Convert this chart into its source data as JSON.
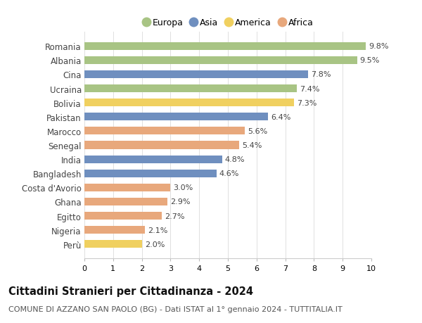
{
  "categories": [
    "Romania",
    "Albania",
    "Cina",
    "Ucraina",
    "Bolivia",
    "Pakistan",
    "Marocco",
    "Senegal",
    "India",
    "Bangladesh",
    "Costa d'Avorio",
    "Ghana",
    "Egitto",
    "Nigeria",
    "Perù"
  ],
  "values": [
    9.8,
    9.5,
    7.8,
    7.4,
    7.3,
    6.4,
    5.6,
    5.4,
    4.8,
    4.6,
    3.0,
    2.9,
    2.7,
    2.1,
    2.0
  ],
  "continents": [
    "Europa",
    "Europa",
    "Asia",
    "Europa",
    "America",
    "Asia",
    "Africa",
    "Africa",
    "Asia",
    "Asia",
    "Africa",
    "Africa",
    "Africa",
    "Africa",
    "America"
  ],
  "continent_colors": {
    "Europa": "#a8c484",
    "Asia": "#6f8fbf",
    "America": "#f0d060",
    "Africa": "#e8a87c"
  },
  "legend_order": [
    "Europa",
    "Asia",
    "America",
    "Africa"
  ],
  "title": "Cittadini Stranieri per Cittadinanza - 2024",
  "subtitle": "COMUNE DI AZZANO SAN PAOLO (BG) - Dati ISTAT al 1° gennaio 2024 - TUTTITALIA.IT",
  "xlim": [
    0,
    10
  ],
  "xticks": [
    0,
    1,
    2,
    3,
    4,
    5,
    6,
    7,
    8,
    9,
    10
  ],
  "background_color": "#ffffff",
  "bar_height": 0.55,
  "value_label_fontsize": 8,
  "category_fontsize": 8.5,
  "title_fontsize": 10.5,
  "subtitle_fontsize": 8
}
